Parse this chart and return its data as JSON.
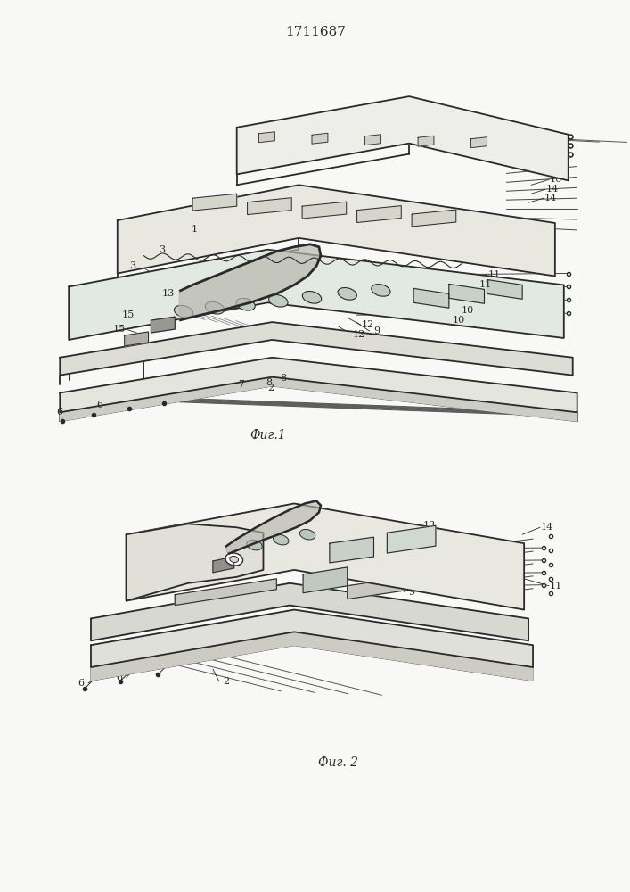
{
  "title": "1711687",
  "fig1_caption": "Фиг.1",
  "fig2_caption": "Фиг. 2",
  "line_color": "#2a2a2a",
  "bg_color": "#f8f8f6",
  "lw_main": 1.3,
  "lw_thin": 0.7,
  "lw_ann": 0.6
}
